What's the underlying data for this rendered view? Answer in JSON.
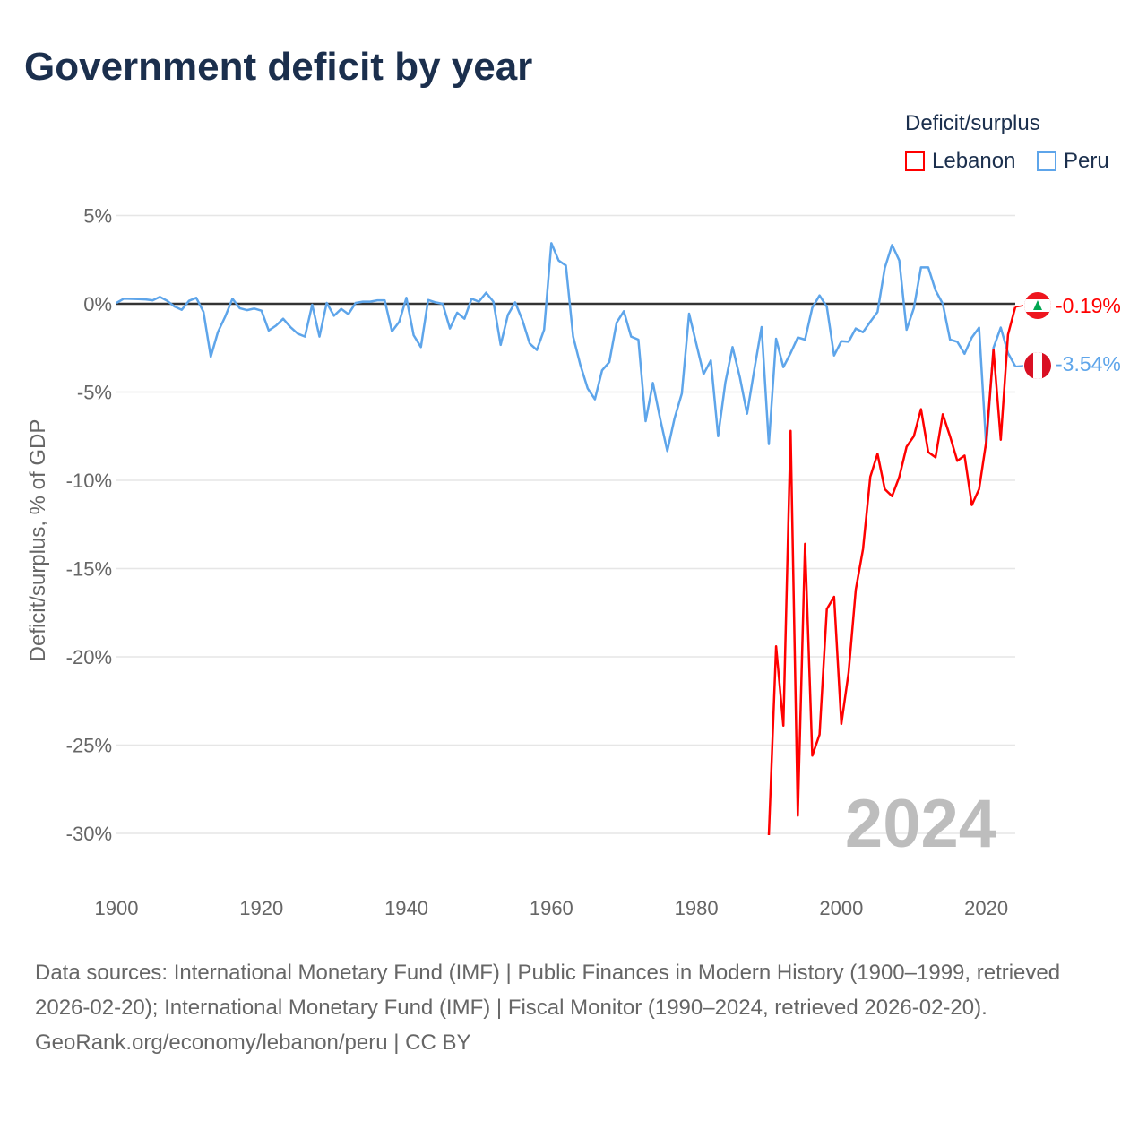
{
  "title": "Government deficit by year",
  "legend": {
    "title": "Deficit/surplus",
    "items": [
      {
        "name": "Lebanon",
        "color": "#ff0000"
      },
      {
        "name": "Peru",
        "color": "#5ea5ea"
      }
    ]
  },
  "year_watermark": "2024",
  "end_labels": {
    "lebanon": "-0.19%",
    "peru": "-3.54%"
  },
  "footer": {
    "sources": "Data sources: International Monetary Fund (IMF) | Public Finances in Modern History (1900–1999, retrieved 2026-02-20); International Monetary Fund (IMF) | Fiscal Monitor (1990–2024, retrieved 2026-02-20).",
    "credit": "GeoRank.org/economy/lebanon/peru | CC BY"
  },
  "chart_data": {
    "type": "line",
    "title": "Government deficit by year",
    "xlabel": "",
    "ylabel": "Deficit/surplus, % of GDP",
    "xlim": [
      1900,
      2024
    ],
    "ylim": [
      -30,
      5
    ],
    "x_ticks": [
      1900,
      1920,
      1940,
      1960,
      1980,
      2000,
      2020
    ],
    "y_ticks": [
      5,
      0,
      -5,
      -10,
      -15,
      -20,
      -25,
      -30
    ],
    "y_tick_labels": [
      "5%",
      "0%",
      "-5%",
      "-10%",
      "-15%",
      "-20%",
      "-25%",
      "-30%"
    ],
    "grid": true,
    "legend_position": "top-right",
    "series": [
      {
        "name": "Lebanon",
        "color": "#ff0000",
        "start_year": 1990,
        "values": [
          -30.1,
          -19.4,
          -23.9,
          -7.2,
          -29.0,
          -13.6,
          -25.6,
          -24.4,
          -17.3,
          -16.6,
          -23.8,
          -20.9,
          -16.2,
          -13.9,
          -9.8,
          -8.5,
          -10.5,
          -10.9,
          -9.8,
          -8.1,
          -7.5,
          -5.97,
          -8.4,
          -8.7,
          -6.26,
          -7.5,
          -8.9,
          -8.6,
          -11.4,
          -10.5,
          -7.8,
          -2.6,
          -7.7,
          -1.74,
          -0.19
        ]
      },
      {
        "name": "Peru",
        "color": "#5ea5ea",
        "start_year": 1900,
        "values": [
          0.05,
          0.29,
          0.28,
          0.27,
          0.25,
          0.2,
          0.39,
          0.17,
          -0.15,
          -0.34,
          0.17,
          0.34,
          -0.46,
          -3.0,
          -1.6,
          -0.73,
          0.29,
          -0.25,
          -0.36,
          -0.27,
          -0.39,
          -1.52,
          -1.24,
          -0.85,
          -1.32,
          -1.69,
          -1.86,
          -0.05,
          -1.86,
          0.05,
          -0.68,
          -0.29,
          -0.59,
          0.05,
          0.12,
          0.12,
          0.2,
          0.2,
          -1.57,
          -1.02,
          0.34,
          -1.78,
          -2.45,
          0.22,
          0.08,
          0,
          -1.4,
          -0.5,
          -0.85,
          0.29,
          0.12,
          0.63,
          0.12,
          -2.33,
          -0.63,
          0.08,
          -0.93,
          -2.25,
          -2.62,
          -1.47,
          3.43,
          2.45,
          2.17,
          -1.86,
          -3.47,
          -4.79,
          -5.41,
          -3.77,
          -3.3,
          -1.07,
          -0.42,
          -1.86,
          -2.03,
          -6.65,
          -4.48,
          -6.51,
          -8.34,
          -6.48,
          -5.08,
          -0.56,
          -2.28,
          -3.98,
          -3.21,
          -7.5,
          -4.45,
          -2.45,
          -4.15,
          -6.23,
          -3.72,
          -1.32,
          -7.95,
          -1.98,
          -3.59,
          -2.79,
          -1.91,
          -2.03,
          -0.22,
          0.47,
          -0.17,
          -2.93,
          -2.12,
          -2.15,
          -1.4,
          -1.61,
          -1.02,
          -0.46,
          2.03,
          3.33,
          2.45,
          -1.47,
          -0.25,
          2.06,
          2.06,
          0.76,
          0,
          -2.03,
          -2.15,
          -2.83,
          -1.91,
          -1.35,
          -8.12,
          -2.49,
          -1.35,
          -2.79,
          -3.54
        ]
      }
    ]
  }
}
